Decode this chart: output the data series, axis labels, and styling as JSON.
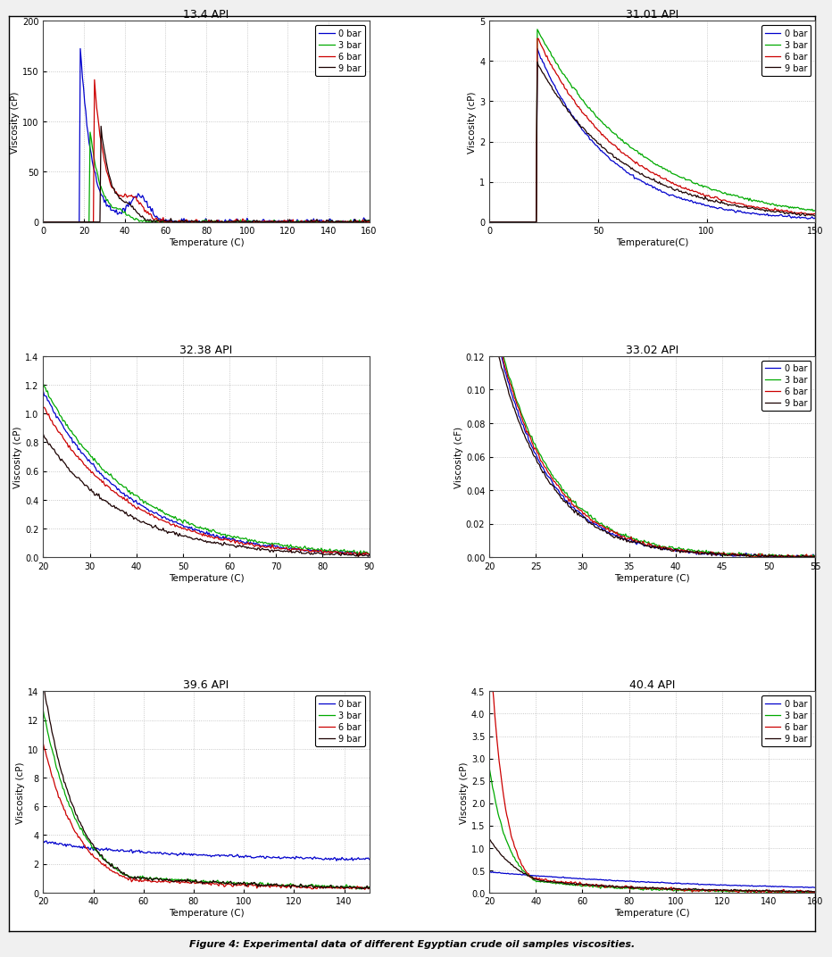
{
  "plots": [
    {
      "title": "13.4 API",
      "xlabel": "Temperature (C)",
      "ylabel": "Viscosity (cP)",
      "xlim": [
        0,
        160
      ],
      "ylim": [
        0,
        200
      ],
      "xticks": [
        0,
        20,
        40,
        60,
        80,
        100,
        120,
        140,
        160
      ],
      "yticks": [
        0,
        50,
        100,
        150,
        200
      ],
      "legend_loc": "upper right",
      "curves": [
        {
          "label": "0 bar",
          "color": "#0000CC",
          "seed": 1
        },
        {
          "label": "3 bar",
          "color": "#00AA00",
          "seed": 2
        },
        {
          "label": "6 bar",
          "color": "#CC0000",
          "seed": 3
        },
        {
          "label": "9 bar",
          "color": "#1A0000",
          "seed": 4
        }
      ]
    },
    {
      "title": "31.01 API",
      "xlabel": "Temperature(C)",
      "ylabel": "Viscosity (cP)",
      "xlim": [
        0,
        150
      ],
      "ylim": [
        0,
        5
      ],
      "xticks": [
        0,
        50,
        100,
        150
      ],
      "yticks": [
        0,
        1,
        2,
        3,
        4,
        5
      ],
      "legend_loc": "upper right",
      "curves": [
        {
          "label": "0 bar",
          "color": "#0000CC",
          "seed": 10
        },
        {
          "label": "3 bar",
          "color": "#00AA00",
          "seed": 11
        },
        {
          "label": "6 bar",
          "color": "#CC0000",
          "seed": 12
        },
        {
          "label": "9 bar",
          "color": "#1A0000",
          "seed": 13
        }
      ]
    },
    {
      "title": "32.38 API",
      "xlabel": "Temperature (C)",
      "ylabel": "Viscosity (cP)",
      "xlim": [
        20,
        90
      ],
      "ylim": [
        0,
        1.4
      ],
      "xticks": [
        20,
        30,
        40,
        50,
        60,
        70,
        80,
        90
      ],
      "yticks": [
        0,
        0.2,
        0.4,
        0.6,
        0.8,
        1.0,
        1.2,
        1.4
      ],
      "legend_loc": null,
      "curves": [
        {
          "label": null,
          "color": "#0000CC",
          "seed": 20
        },
        {
          "label": null,
          "color": "#00AA00",
          "seed": 21
        },
        {
          "label": null,
          "color": "#CC0000",
          "seed": 22
        },
        {
          "label": null,
          "color": "#1A0000",
          "seed": 23
        }
      ]
    },
    {
      "title": "33.02 API",
      "xlabel": "Temperature (C)",
      "ylabel": "Viscosity (cF)",
      "xlim": [
        20,
        55
      ],
      "ylim": [
        0,
        0.12
      ],
      "xticks": [
        20,
        25,
        30,
        35,
        40,
        45,
        50,
        55
      ],
      "yticks": [
        0,
        0.02,
        0.04,
        0.06,
        0.08,
        0.1,
        0.12
      ],
      "legend_loc": "upper right",
      "curves": [
        {
          "label": "0 bar",
          "color": "#0000CC",
          "seed": 30
        },
        {
          "label": "3 bar",
          "color": "#00AA00",
          "seed": 31
        },
        {
          "label": "6 bar",
          "color": "#CC0000",
          "seed": 32
        },
        {
          "label": "9 bar",
          "color": "#1A0000",
          "seed": 33
        }
      ]
    },
    {
      "title": "39.6 API",
      "xlabel": "Temperature (C)",
      "ylabel": "Viscosity (cP)",
      "xlim": [
        20,
        150
      ],
      "ylim": [
        0,
        14
      ],
      "xticks": [
        20,
        40,
        60,
        80,
        100,
        120,
        140
      ],
      "yticks": [
        0,
        2,
        4,
        6,
        8,
        10,
        12,
        14
      ],
      "legend_loc": "upper right",
      "curves": [
        {
          "label": "0 bar",
          "color": "#0000CC",
          "seed": 40
        },
        {
          "label": "3 bar",
          "color": "#00AA00",
          "seed": 41
        },
        {
          "label": "6 bar",
          "color": "#CC0000",
          "seed": 42
        },
        {
          "label": "9 bar",
          "color": "#1A0000",
          "seed": 43
        }
      ]
    },
    {
      "title": "40.4 API",
      "xlabel": "Temperature (C)",
      "ylabel": "Viscosity (cP)",
      "xlim": [
        20,
        160
      ],
      "ylim": [
        0,
        4.5
      ],
      "xticks": [
        20,
        40,
        60,
        80,
        100,
        120,
        140,
        160
      ],
      "yticks": [
        0,
        0.5,
        1.0,
        1.5,
        2.0,
        2.5,
        3.0,
        3.5,
        4.0,
        4.5
      ],
      "legend_loc": "upper right",
      "curves": [
        {
          "label": "0 bar",
          "color": "#0000CC",
          "seed": 50
        },
        {
          "label": "3 bar",
          "color": "#00AA00",
          "seed": 51
        },
        {
          "label": "6 bar",
          "color": "#CC0000",
          "seed": 52
        },
        {
          "label": "9 bar",
          "color": "#1A0000",
          "seed": 53
        }
      ]
    }
  ],
  "figure_caption": "Figure 4: Experimental data of different Egyptian crude oil samples viscosities.",
  "bg_outer": "#F0F0F0",
  "bg_inner": "#FFFFFF",
  "grid_color": "#BBBBBB",
  "grid_style": ":"
}
